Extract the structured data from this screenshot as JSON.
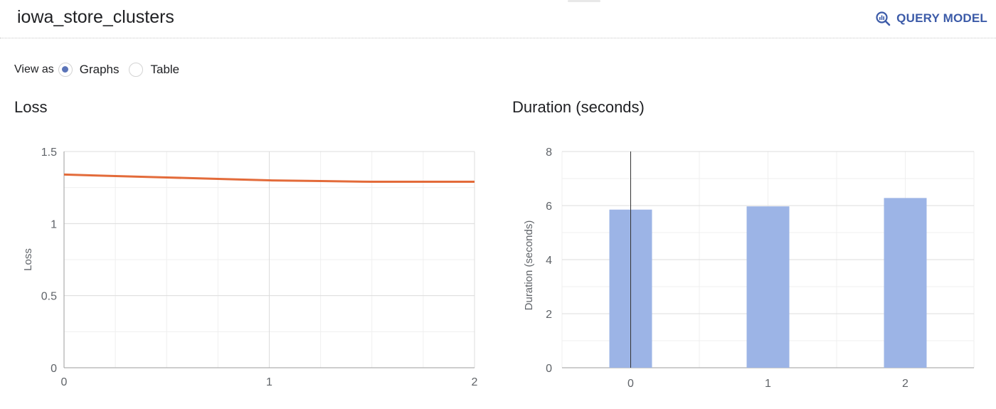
{
  "header": {
    "model_name": "iowa_store_clusters",
    "query_model_label": "QUERY MODEL",
    "query_icon": "query-magnifier-icon",
    "accent_color": "#3c5ba8"
  },
  "view_as": {
    "label": "View as",
    "options": [
      {
        "label": "Graphs",
        "selected": true
      },
      {
        "label": "Table",
        "selected": false
      }
    ]
  },
  "chart_data": [
    {
      "type": "line",
      "title": "Loss",
      "xlabel": "",
      "ylabel": "Loss",
      "xlim": [
        0,
        2
      ],
      "ylim": [
        0,
        1.5
      ],
      "x_ticks": [
        "0",
        "1",
        "2"
      ],
      "y_ticks": [
        "0",
        "0.5",
        "1",
        "1.5"
      ],
      "grid": true,
      "color": "#e36b3a",
      "series": [
        {
          "x": [
            0,
            0.25,
            0.5,
            0.75,
            1,
            1.25,
            1.5,
            1.75,
            2
          ],
          "values": [
            1.34,
            1.33,
            1.32,
            1.31,
            1.3,
            1.295,
            1.29,
            1.29,
            1.29
          ]
        }
      ]
    },
    {
      "type": "bar",
      "title": "Duration (seconds)",
      "xlabel": "",
      "ylabel": "Duration (seconds)",
      "categories": [
        "0",
        "1",
        "2"
      ],
      "values": [
        5.85,
        5.97,
        6.28
      ],
      "ylim": [
        0,
        8
      ],
      "y_ticks": [
        "0",
        "2",
        "4",
        "6",
        "8"
      ],
      "grid": true,
      "color": "#9cb4e6"
    }
  ]
}
